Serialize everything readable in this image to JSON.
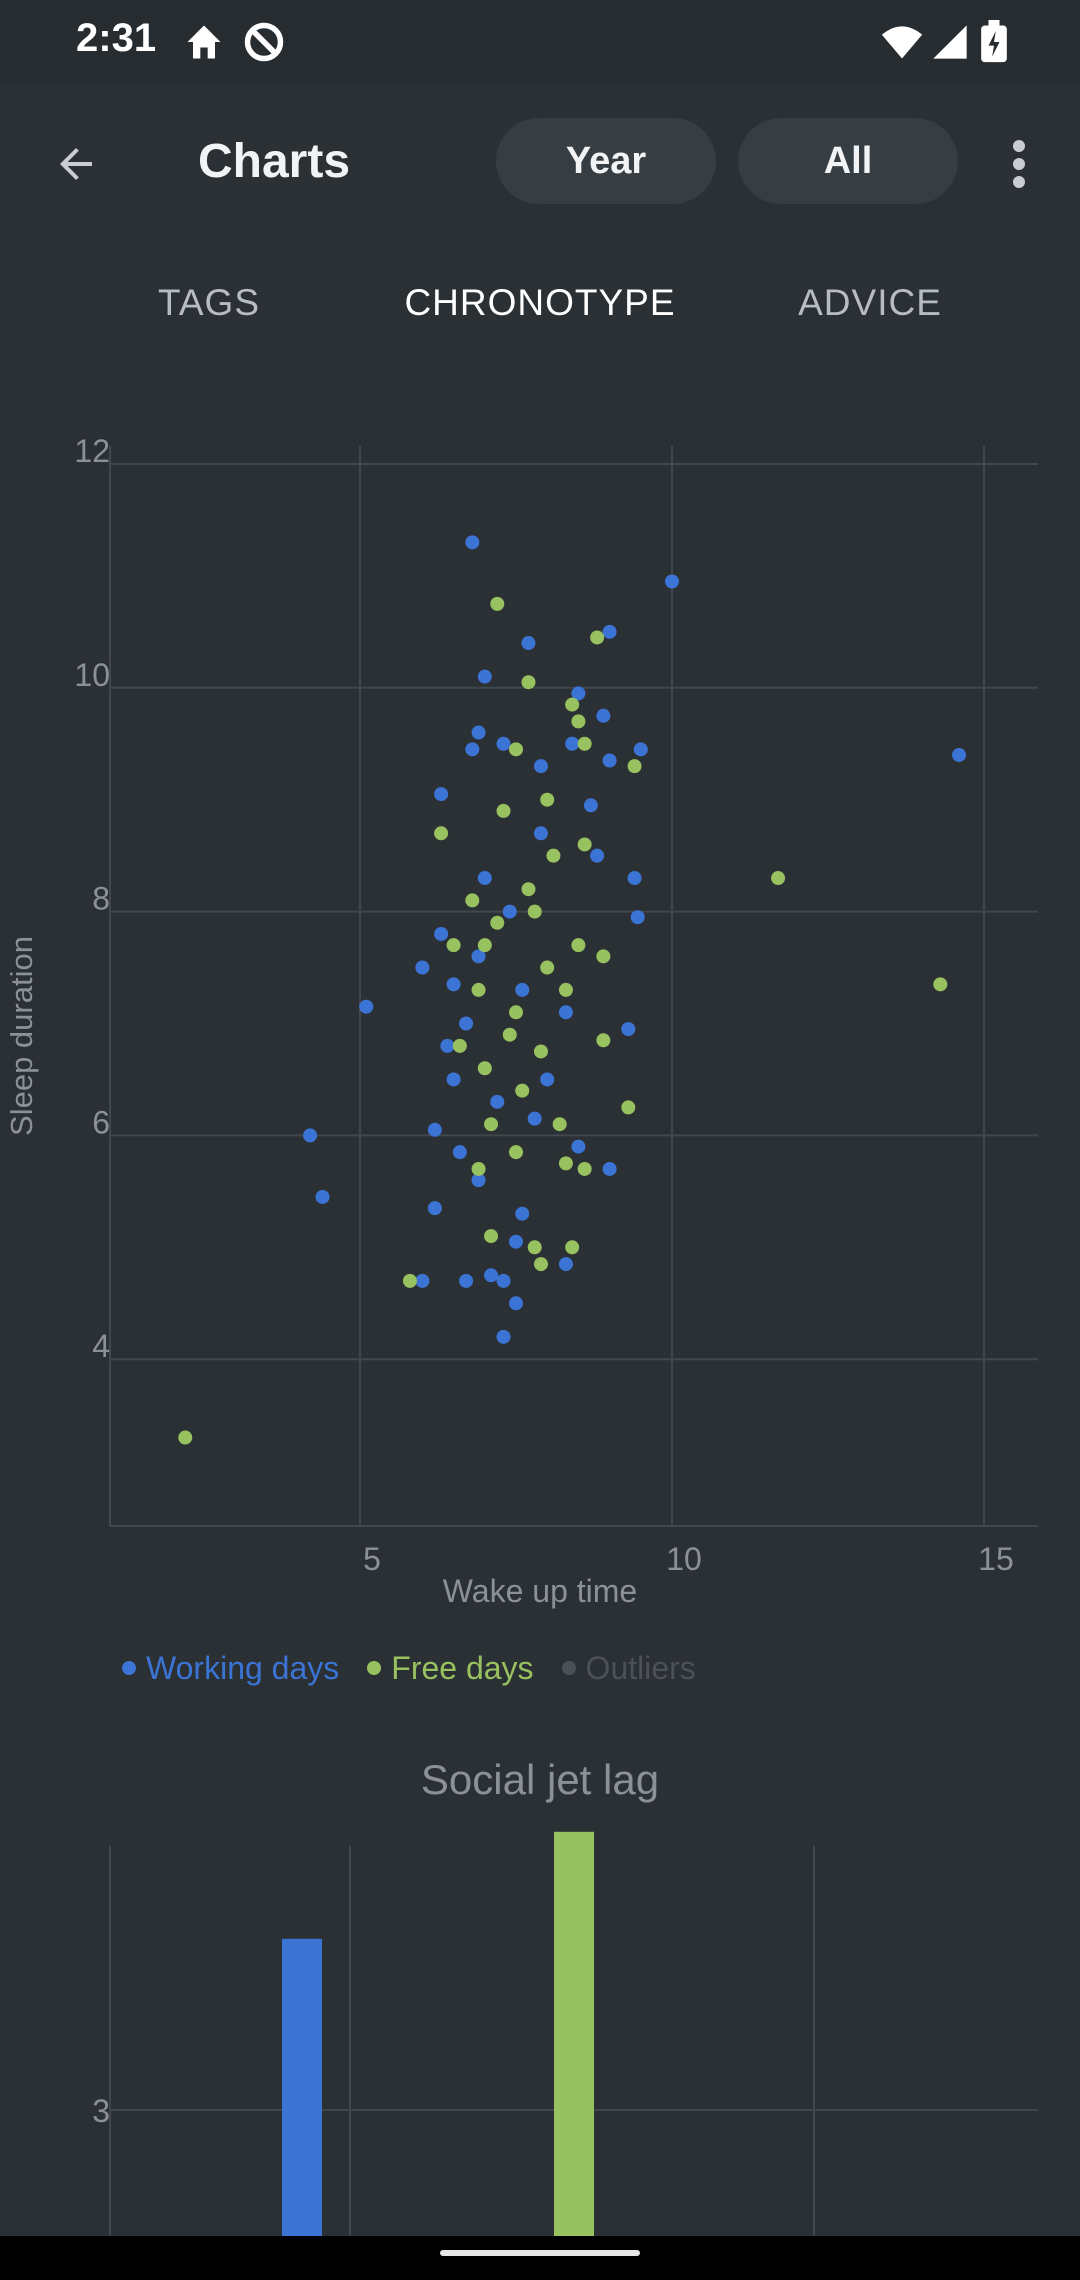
{
  "status_bar": {
    "time": "2:31",
    "icons": [
      "home-icon",
      "do-not-disturb-icon",
      "wifi-icon",
      "signal-icon",
      "battery-charging-icon"
    ]
  },
  "app_bar": {
    "title": "Charts",
    "back_icon": "arrow-back-icon",
    "filters": [
      "Year",
      "All"
    ],
    "more_icon": "more-vert-icon"
  },
  "tabs": [
    {
      "label": "TAGS",
      "active": false
    },
    {
      "label": "CHRONOTYPE",
      "active": true
    },
    {
      "label": "ADVICE",
      "active": false
    }
  ],
  "colors": {
    "background": "#2b3035",
    "working_days": "#3b74d4",
    "free_days": "#98c15f",
    "outliers": "#4b5156",
    "grid": "#41474d",
    "axis_text": "#8b9197"
  },
  "chart_data": [
    {
      "type": "scatter",
      "xlabel": "Wake up time",
      "ylabel": "Sleep duration",
      "xlim": [
        1,
        15.25
      ],
      "ylim": [
        2.5,
        12.1
      ],
      "x_ticks": [
        "5",
        "10",
        "15"
      ],
      "y_ticks": [
        "12",
        "10",
        "8",
        "6",
        "4"
      ],
      "grid": true,
      "legend_position": "bottom-left",
      "legend": [
        {
          "label": "Working days",
          "color": "#3b74d4",
          "active": true
        },
        {
          "label": "Free days",
          "color": "#98c15f",
          "active": true
        },
        {
          "label": "Outliers",
          "color": "#4b5156",
          "active": false
        }
      ],
      "series": [
        {
          "name": "Working days",
          "color": "#3b74d4",
          "points": [
            [
              6.8,
              11.3
            ],
            [
              10.0,
              10.95
            ],
            [
              7.7,
              10.4
            ],
            [
              9.0,
              10.5
            ],
            [
              7.0,
              10.1
            ],
            [
              14.6,
              9.4
            ],
            [
              8.5,
              9.95
            ],
            [
              8.9,
              9.75
            ],
            [
              6.9,
              9.6
            ],
            [
              7.3,
              9.5
            ],
            [
              6.8,
              9.45
            ],
            [
              9.5,
              9.45
            ],
            [
              8.4,
              9.5
            ],
            [
              9.0,
              9.35
            ],
            [
              7.9,
              9.3
            ],
            [
              6.3,
              9.05
            ],
            [
              5.1,
              7.15
            ],
            [
              4.2,
              6.0
            ],
            [
              4.4,
              5.45
            ],
            [
              6.2,
              5.35
            ],
            [
              6.0,
              4.7
            ],
            [
              6.7,
              4.7
            ],
            [
              7.3,
              4.7
            ],
            [
              7.1,
              4.75
            ],
            [
              7.5,
              4.5
            ],
            [
              7.3,
              4.2
            ],
            [
              7.5,
              5.05
            ],
            [
              8.3,
              4.85
            ],
            [
              9.0,
              5.7
            ],
            [
              6.2,
              6.05
            ],
            [
              6.0,
              7.5
            ],
            [
              6.5,
              7.35
            ],
            [
              6.3,
              7.8
            ],
            [
              9.3,
              6.95
            ],
            [
              9.4,
              8.3
            ],
            [
              9.45,
              7.95
            ],
            [
              8.7,
              8.95
            ],
            [
              8.0,
              6.5
            ],
            [
              7.6,
              5.3
            ],
            [
              6.9,
              5.6
            ],
            [
              6.5,
              6.5
            ],
            [
              7.2,
              6.3
            ],
            [
              7.8,
              6.15
            ],
            [
              6.6,
              5.85
            ],
            [
              8.5,
              5.9
            ],
            [
              7.0,
              8.3
            ],
            [
              7.4,
              8.0
            ],
            [
              6.7,
              7.0
            ],
            [
              7.9,
              8.7
            ],
            [
              8.3,
              7.1
            ],
            [
              6.9,
              7.6
            ],
            [
              7.6,
              7.3
            ],
            [
              8.8,
              8.5
            ],
            [
              6.4,
              6.8
            ]
          ]
        },
        {
          "name": "Free days",
          "color": "#98c15f",
          "points": [
            [
              7.2,
              10.75
            ],
            [
              8.8,
              10.45
            ],
            [
              7.7,
              10.05
            ],
            [
              8.4,
              9.85
            ],
            [
              8.5,
              9.7
            ],
            [
              7.5,
              9.45
            ],
            [
              8.6,
              9.5
            ],
            [
              9.4,
              9.3
            ],
            [
              6.3,
              8.7
            ],
            [
              11.7,
              8.3
            ],
            [
              14.3,
              7.35
            ],
            [
              9.3,
              6.25
            ],
            [
              5.8,
              4.7
            ],
            [
              7.1,
              5.1
            ],
            [
              7.8,
              5.0
            ],
            [
              7.9,
              4.85
            ],
            [
              8.4,
              5.0
            ],
            [
              2.2,
              3.3
            ],
            [
              8.6,
              5.7
            ],
            [
              6.9,
              5.7
            ],
            [
              8.3,
              5.75
            ],
            [
              7.5,
              5.85
            ],
            [
              8.9,
              6.85
            ],
            [
              8.5,
              7.7
            ],
            [
              7.0,
              7.7
            ],
            [
              7.8,
              8.0
            ],
            [
              8.1,
              8.5
            ],
            [
              6.9,
              7.3
            ],
            [
              7.4,
              6.9
            ],
            [
              8.0,
              7.5
            ],
            [
              7.6,
              6.4
            ],
            [
              6.6,
              6.8
            ],
            [
              7.3,
              8.9
            ],
            [
              8.0,
              9.0
            ],
            [
              7.7,
              8.2
            ],
            [
              8.9,
              7.6
            ],
            [
              7.1,
              6.1
            ],
            [
              8.2,
              6.1
            ],
            [
              6.8,
              8.1
            ],
            [
              7.5,
              7.1
            ],
            [
              8.6,
              8.6
            ],
            [
              7.9,
              6.75
            ],
            [
              6.5,
              7.7
            ],
            [
              7.2,
              7.9
            ],
            [
              8.3,
              7.3
            ],
            [
              7.0,
              6.6
            ]
          ]
        }
      ]
    },
    {
      "type": "bar",
      "title": "Social jet lag",
      "y_ticks": [
        "3"
      ],
      "ylim": [
        2.4,
        3.65
      ],
      "series": [
        {
          "color": "#3b74d4",
          "values": [
            3.4
          ]
        },
        {
          "color": "#98c15f",
          "values": [
            3.65
          ]
        }
      ]
    }
  ]
}
